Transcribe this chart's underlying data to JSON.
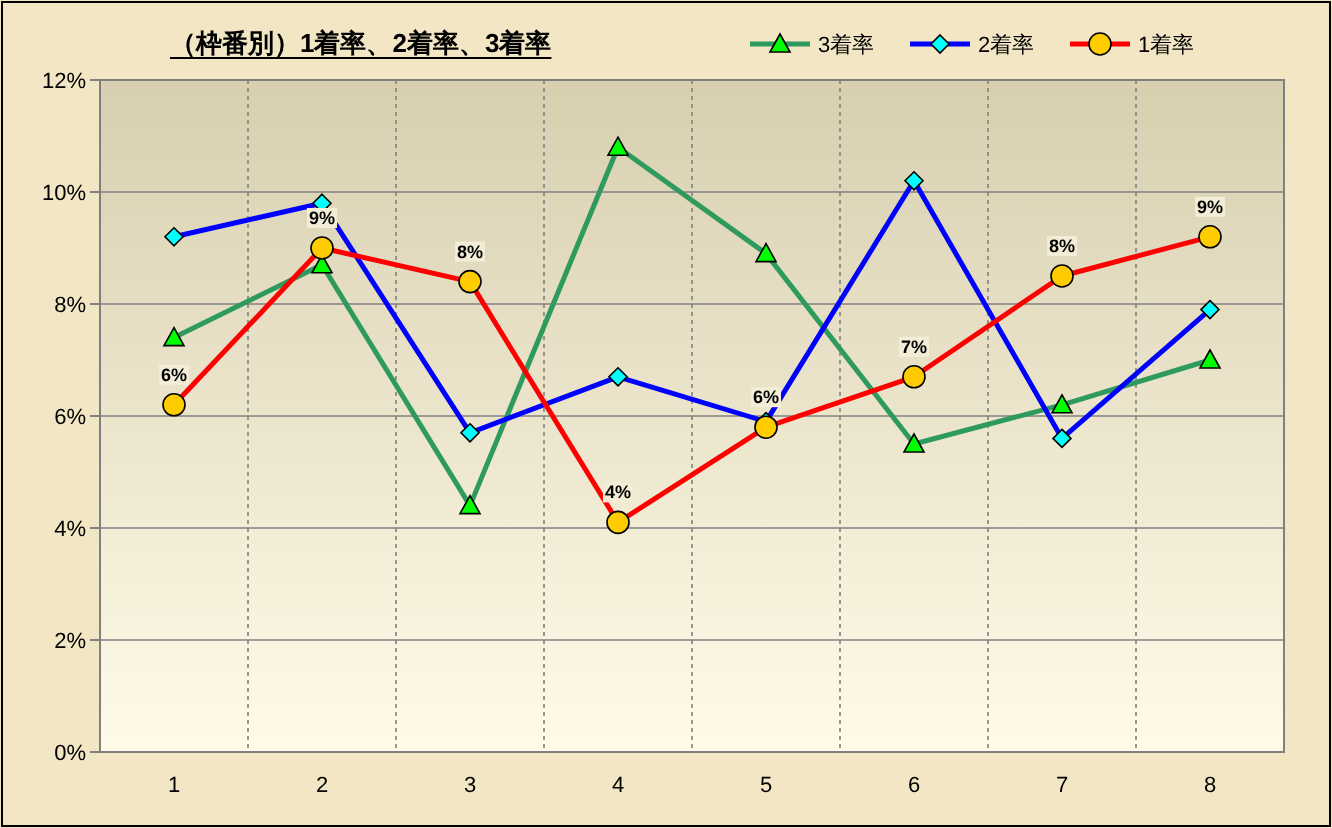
{
  "chart_data": {
    "type": "line",
    "title": "（枠番別）1着率、2着率、3着率",
    "categories": [
      "1",
      "2",
      "3",
      "4",
      "5",
      "6",
      "7",
      "8"
    ],
    "series": [
      {
        "name": "3着率",
        "color": "#2e9a5e",
        "marker": "triangle",
        "values": [
          7.4,
          8.7,
          4.4,
          10.8,
          8.9,
          5.5,
          6.2,
          7.0
        ]
      },
      {
        "name": "2着率",
        "color": "#0000ff",
        "marker": "diamond",
        "values": [
          9.2,
          9.8,
          5.7,
          6.7,
          5.9,
          10.2,
          5.6,
          7.9
        ]
      },
      {
        "name": "1着率",
        "color": "#ff0000",
        "marker": "circle",
        "values": [
          6.2,
          9.0,
          8.4,
          4.1,
          5.8,
          6.7,
          8.5,
          9.2
        ],
        "value_labels": [
          "6%",
          "9%",
          "8%",
          "4%",
          "6%",
          "7%",
          "8%",
          "9%"
        ]
      }
    ],
    "ylim": [
      0,
      12
    ],
    "yticks": [
      {
        "value": 0,
        "label": "0%"
      },
      {
        "value": 2,
        "label": "2%"
      },
      {
        "value": 4,
        "label": "4%"
      },
      {
        "value": 6,
        "label": "6%"
      },
      {
        "value": 8,
        "label": "8%"
      },
      {
        "value": 10,
        "label": "10%"
      },
      {
        "value": 12,
        "label": "12%"
      }
    ],
    "grid": true,
    "legend": "top right",
    "line_style": "solid"
  }
}
